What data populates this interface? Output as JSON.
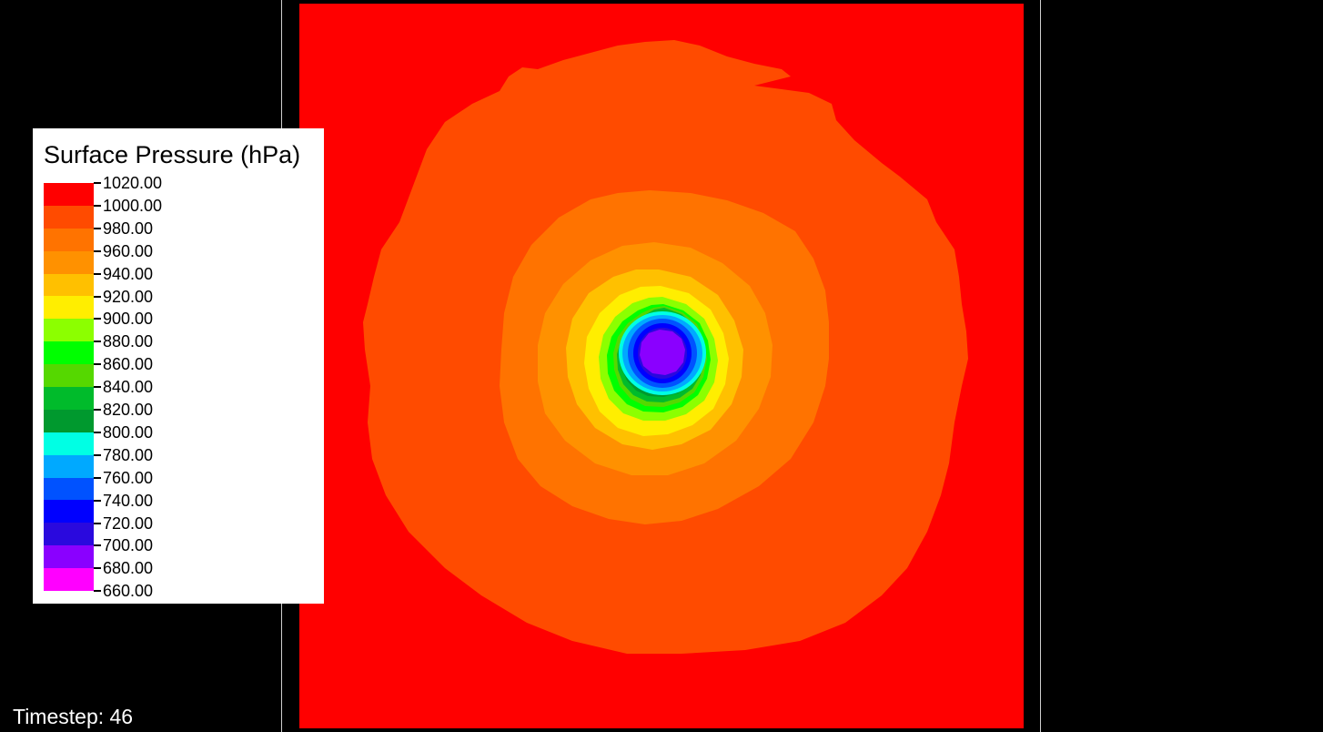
{
  "legend": {
    "title": "Surface Pressure (hPa)",
    "bands": [
      {
        "color": "#ff0000"
      },
      {
        "color": "#ff4b00"
      },
      {
        "color": "#ff7300"
      },
      {
        "color": "#ff9100"
      },
      {
        "color": "#ffc000"
      },
      {
        "color": "#ffee00"
      },
      {
        "color": "#8cff00"
      },
      {
        "color": "#00ff00"
      },
      {
        "color": "#55d800"
      },
      {
        "color": "#00bb2b"
      },
      {
        "color": "#00992e"
      },
      {
        "color": "#00ffe4"
      },
      {
        "color": "#00a9ff"
      },
      {
        "color": "#0052ff"
      },
      {
        "color": "#0000ff"
      },
      {
        "color": "#2a09de"
      },
      {
        "color": "#8a00ff"
      },
      {
        "color": "#ff00ff"
      }
    ],
    "ticks": [
      "1020.00",
      "1000.00",
      "980.00",
      "960.00",
      "940.00",
      "920.00",
      "900.00",
      "880.00",
      "860.00",
      "840.00",
      "820.00",
      "800.00",
      "780.00",
      "760.00",
      "740.00",
      "720.00",
      "700.00",
      "680.00",
      "660.00"
    ]
  },
  "timestep_label": "Timestep: 46",
  "colors": {
    "background": "#000000",
    "frame": "#cfcfcf",
    "legend_background": "#ffffff"
  }
}
